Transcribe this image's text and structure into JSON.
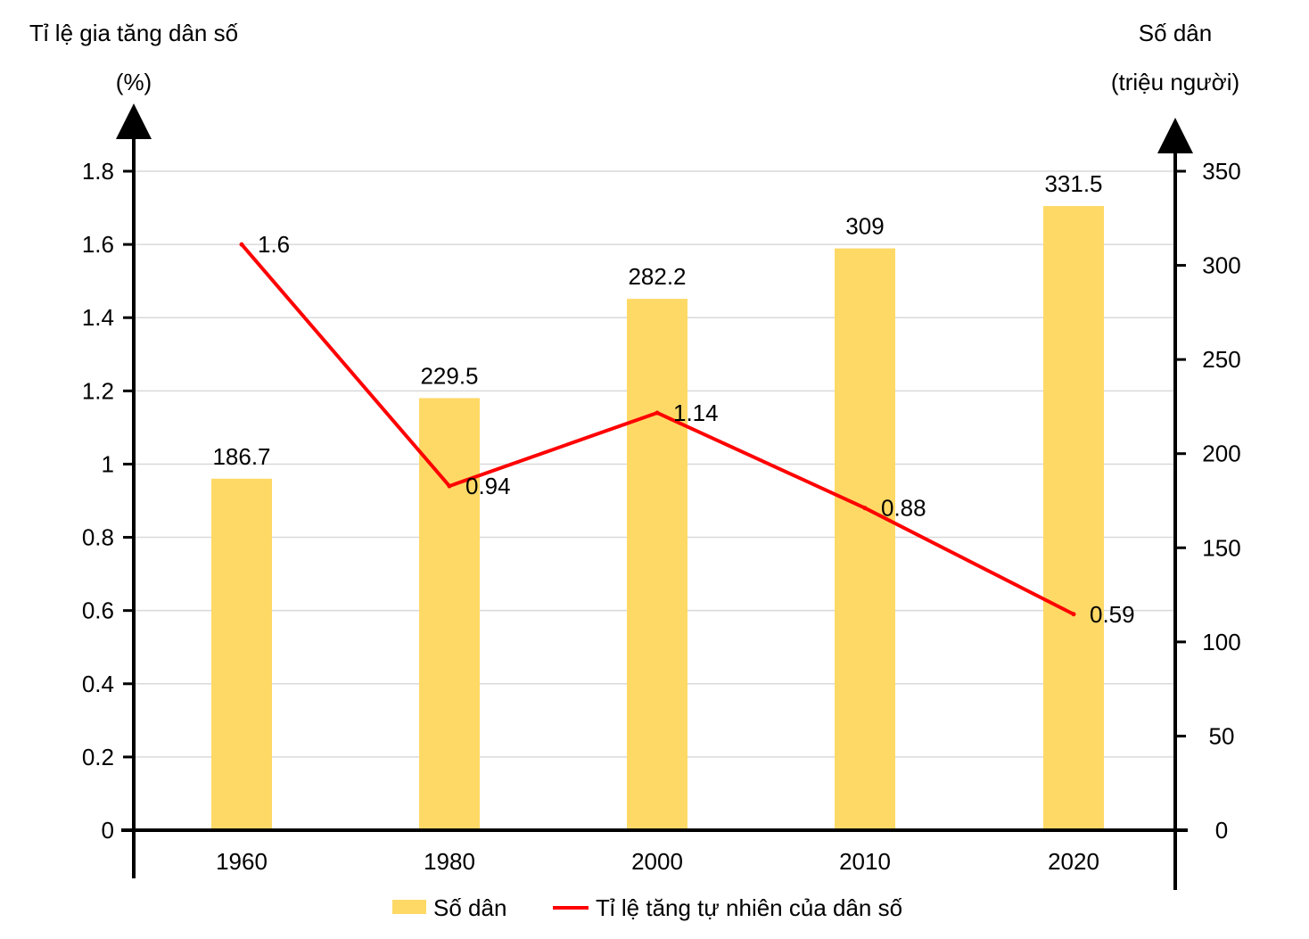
{
  "chart_data": {
    "type": "bar",
    "categories": [
      "1960",
      "1980",
      "2000",
      "2010",
      "2020"
    ],
    "series": [
      {
        "name": "Số dân",
        "type": "bar",
        "axis": "right",
        "values": [
          186.7,
          229.5,
          282.2,
          309,
          331.5
        ],
        "labels": [
          "186.7",
          "229.5",
          "282.2",
          "309",
          "331.5"
        ],
        "color": "#FED966"
      },
      {
        "name": "Tỉ lệ tăng tự nhiên của dân số",
        "type": "line",
        "axis": "left",
        "values": [
          1.6,
          0.94,
          1.14,
          0.88,
          0.59
        ],
        "labels": [
          "1.6",
          "0.94",
          "1.14",
          "0.88",
          "0.59"
        ],
        "color": "#FF0000"
      }
    ],
    "left_axis": {
      "title_line1": "Tỉ lệ gia tăng dân số",
      "title_line2": "(%)",
      "ylim": [
        0,
        1.8
      ],
      "ticks": [
        "0",
        "0.2",
        "0.4",
        "0.6",
        "0.8",
        "1",
        "1.2",
        "1.4",
        "1.6",
        "1.8"
      ]
    },
    "right_axis": {
      "title_line1": "Số dân",
      "title_line2": "(triệu người)",
      "ylim": [
        0,
        350
      ],
      "ticks": [
        "0",
        "50",
        "100",
        "150",
        "200",
        "250",
        "300",
        "350"
      ]
    },
    "grid": true,
    "legend_position": "bottom",
    "colors": {
      "bar": "#FED966",
      "line": "#FF0000",
      "grid": "#D9D9D9",
      "axis": "#000000"
    }
  }
}
